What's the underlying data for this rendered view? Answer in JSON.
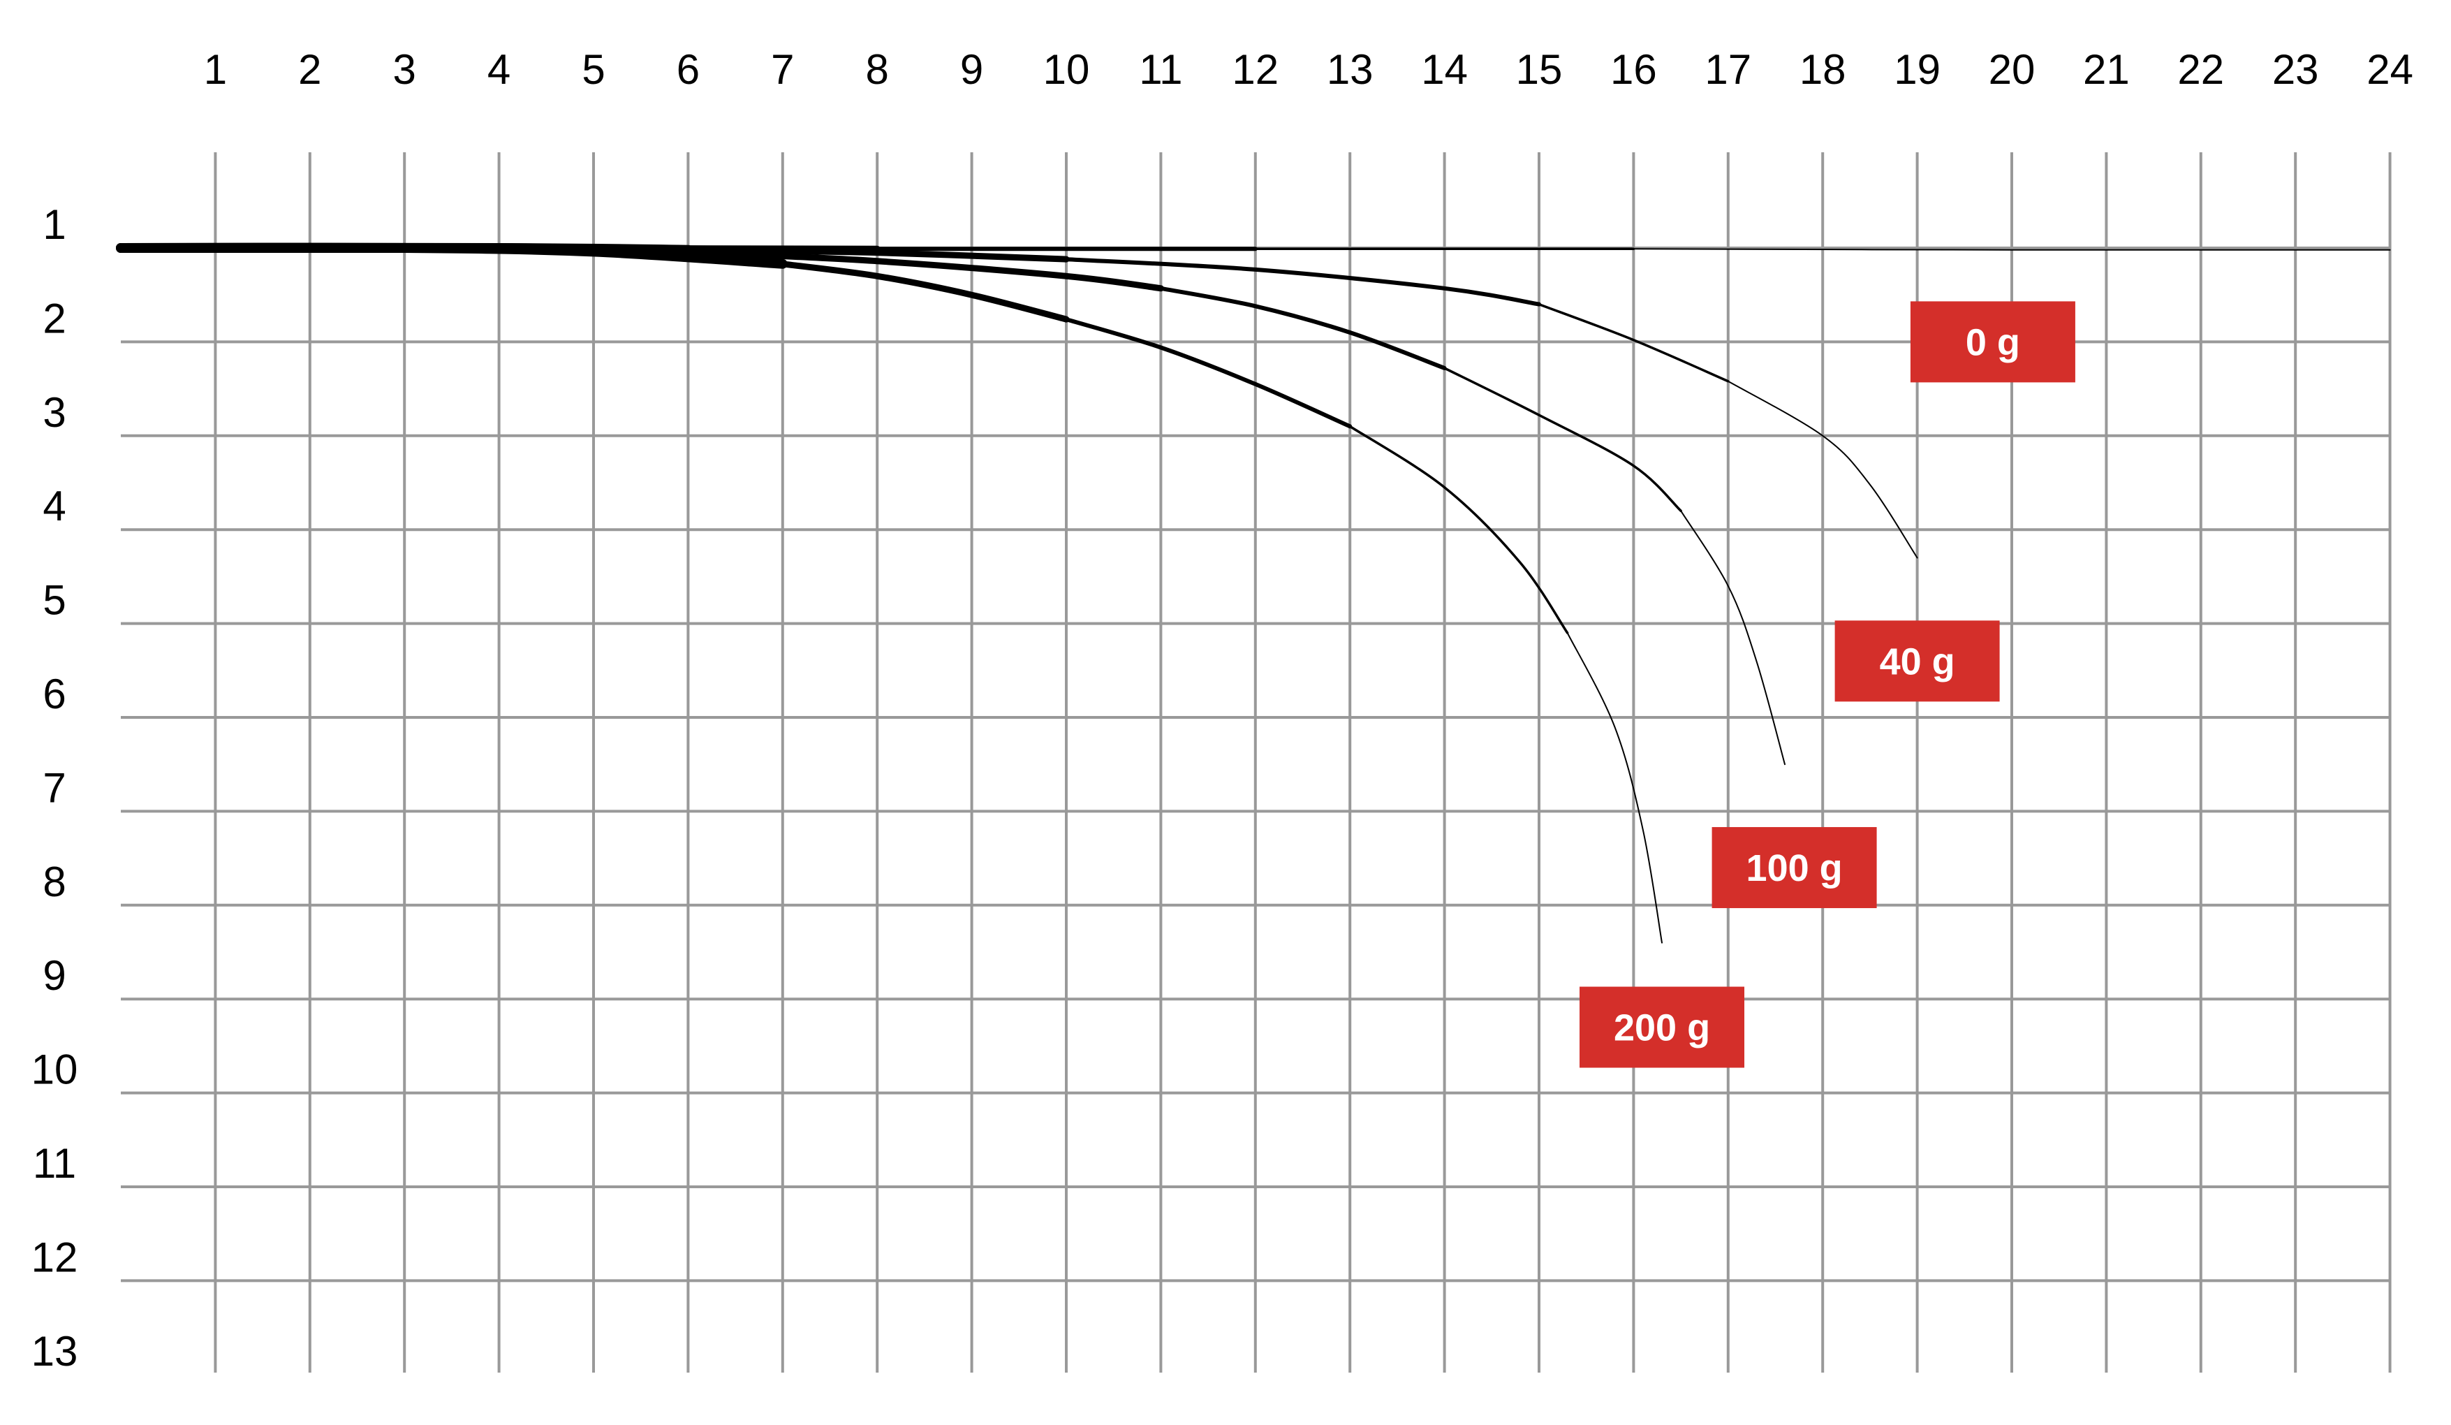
{
  "chart_data": {
    "type": "line",
    "title": "",
    "xlabel": "",
    "ylabel": "",
    "x_ticks": [
      "1",
      "2",
      "3",
      "4",
      "5",
      "6",
      "7",
      "8",
      "9",
      "10",
      "11",
      "12",
      "13",
      "14",
      "15",
      "16",
      "17",
      "18",
      "19",
      "20",
      "21",
      "22",
      "23",
      "24"
    ],
    "y_ticks": [
      "1",
      "2",
      "3",
      "4",
      "5",
      "6",
      "7",
      "8",
      "9",
      "10",
      "11",
      "12",
      "13"
    ],
    "xlim": [
      0,
      24
    ],
    "ylim": [
      1,
      13
    ],
    "y_inverted": true,
    "grid": true,
    "legend": "none",
    "colors": {
      "curve": "#000000",
      "grid": "#999999",
      "badge": "#d42f2a",
      "badge_text": "#ffffff"
    },
    "series": [
      {
        "label": "0 g",
        "x": [
          0,
          4,
          8,
          12,
          16,
          20,
          24
        ],
        "y": [
          1.0,
          1.0,
          1.01,
          1.01,
          1.01,
          1.02,
          1.02
        ]
      },
      {
        "label": "40 g",
        "x": [
          0,
          4,
          6,
          8,
          10,
          12,
          14,
          15,
          16,
          17,
          18,
          18.5,
          19.0
        ],
        "y": [
          1.0,
          1.0,
          1.02,
          1.05,
          1.12,
          1.23,
          1.43,
          1.6,
          1.98,
          2.42,
          3.0,
          3.52,
          4.3
        ]
      },
      {
        "label": "100 g",
        "x": [
          0,
          4,
          6,
          8,
          10,
          11,
          12,
          13,
          14,
          15,
          16,
          16.5,
          17.0,
          17.3,
          17.6
        ],
        "y": [
          1.0,
          1.0,
          1.04,
          1.14,
          1.3,
          1.43,
          1.62,
          1.9,
          2.28,
          2.78,
          3.32,
          3.8,
          4.6,
          5.4,
          6.5
        ]
      },
      {
        "label": "200 g",
        "x": [
          0,
          3,
          5,
          7,
          8,
          9,
          10,
          11,
          12,
          13,
          14,
          14.8,
          15.3,
          15.8,
          16.1,
          16.3
        ],
        "y": [
          1.0,
          1.0,
          1.04,
          1.17,
          1.3,
          1.5,
          1.76,
          2.06,
          2.45,
          2.9,
          3.55,
          4.35,
          5.1,
          6.1,
          7.2,
          8.4
        ]
      }
    ],
    "annotations": [
      {
        "text": "0 g",
        "x": 19.8,
        "y": 2.0
      },
      {
        "text": "40 g",
        "x": 19.0,
        "y": 5.4
      },
      {
        "text": "100 g",
        "x": 17.7,
        "y": 7.6
      },
      {
        "text": "200 g",
        "x": 16.3,
        "y": 9.3
      }
    ]
  }
}
